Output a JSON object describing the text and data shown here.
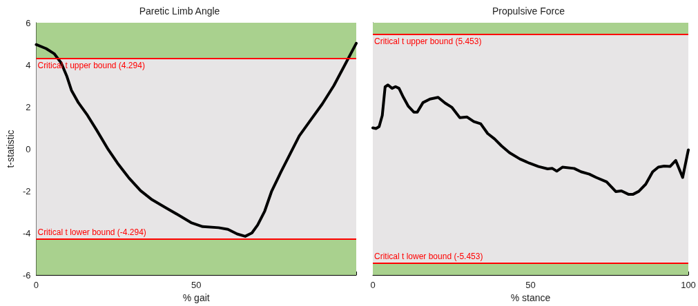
{
  "chart_data": [
    {
      "type": "line",
      "title": "Paretic Limb Angle",
      "xlabel": "% gait",
      "ylabel": "t-statistic",
      "xlim": [
        0,
        100
      ],
      "xticks": [
        0,
        50,
        {
          "value": 100,
          "label": null
        }
      ],
      "ylim": [
        -6,
        6
      ],
      "yticks": [
        -6,
        -4,
        -2,
        0,
        2,
        4,
        6
      ],
      "grid": false,
      "marker": "none",
      "line_style": "solid",
      "series": [
        {
          "color": "#000000",
          "x": [
            0,
            3.1,
            5.6,
            7.8,
            9.6,
            11,
            13.2,
            16,
            18.9,
            22.5,
            25.4,
            29,
            32.6,
            36.2,
            40.5,
            44.8,
            48.4,
            52,
            57,
            59.9,
            62.8,
            65.3,
            67.4,
            69.2,
            71.4,
            73.5,
            76.4,
            79.3,
            82.2,
            85.8,
            89.4,
            93,
            96.6,
            100
          ],
          "values": [
            4.96,
            4.77,
            4.53,
            4.09,
            3.44,
            2.79,
            2.19,
            1.6,
            0.89,
            -0.03,
            -0.68,
            -1.39,
            -1.99,
            -2.42,
            -2.8,
            -3.18,
            -3.51,
            -3.7,
            -3.75,
            -3.83,
            -4.05,
            -4.16,
            -4.0,
            -3.62,
            -2.96,
            -2.04,
            -1.12,
            -0.25,
            0.62,
            1.38,
            2.14,
            3.01,
            4.04,
            5.02
          ]
        }
      ],
      "ref_lines": [
        {
          "axis": "y",
          "value": 4.294,
          "label": "Critical t upper bound (4.294)",
          "color": "#ff0000"
        },
        {
          "axis": "y",
          "value": -4.294,
          "label": "Critical t lower bound (-4.294)",
          "color": "#ff0000"
        }
      ],
      "bands": [
        {
          "axis": "y",
          "from": 4.294,
          "to": 6,
          "color": "#a9d18e"
        },
        {
          "axis": "y",
          "from": -4.294,
          "to": 4.294,
          "color": "#e7e5e6"
        },
        {
          "axis": "y",
          "from": -6,
          "to": -4.294,
          "color": "#a9d18e"
        }
      ]
    },
    {
      "type": "line",
      "title": "Propulsive Force",
      "xlabel": "% stance",
      "xlim": [
        0,
        100
      ],
      "xticks": [
        0,
        50,
        100
      ],
      "ylim": [
        -6,
        6
      ],
      "tick_labels": "x",
      "grid": false,
      "marker": "none",
      "line_style": "solid",
      "series": [
        {
          "color": "#000000",
          "x": [
            0,
            1,
            2,
            3,
            3.9,
            4.8,
            6.1,
            7.2,
            8.3,
            9.7,
            11.2,
            13,
            14.1,
            15.9,
            18.1,
            20.7,
            22.9,
            25.1,
            27.6,
            29.8,
            32,
            34.2,
            36.4,
            38.6,
            40.8,
            43.3,
            46.6,
            49.6,
            52.5,
            55.4,
            56.9,
            58.3,
            60.1,
            63.8,
            66,
            68.6,
            70.8,
            74.1,
            75.5,
            77,
            78.8,
            81,
            82.5,
            84.3,
            86.5,
            88.7,
            90.5,
            92.3,
            94.2,
            96,
            98.2,
            100
          ],
          "values": [
            1.0,
            0.97,
            1.06,
            1.59,
            2.95,
            3.04,
            2.88,
            2.96,
            2.88,
            2.45,
            2.04,
            1.75,
            1.75,
            2.2,
            2.37,
            2.45,
            2.18,
            1.97,
            1.48,
            1.52,
            1.3,
            1.19,
            0.73,
            0.47,
            0.14,
            -0.18,
            -0.48,
            -0.68,
            -0.84,
            -0.95,
            -0.93,
            -1.06,
            -0.87,
            -0.93,
            -1.09,
            -1.2,
            -1.36,
            -1.57,
            -1.79,
            -2.03,
            -2.0,
            -2.16,
            -2.16,
            -2.02,
            -1.68,
            -1.09,
            -0.87,
            -0.82,
            -0.84,
            -0.55,
            -1.36,
            -0.05
          ]
        }
      ],
      "ref_lines": [
        {
          "axis": "y",
          "value": 5.453,
          "label": "Critical t upper bound (5.453)",
          "color": "#ff0000"
        },
        {
          "axis": "y",
          "value": -5.453,
          "label": "Critical t lower bound (-5.453)",
          "color": "#ff0000"
        }
      ],
      "bands": [
        {
          "axis": "y",
          "from": 5.453,
          "to": 6,
          "color": "#a9d18e"
        },
        {
          "axis": "y",
          "from": -5.453,
          "to": 5.453,
          "color": "#e7e5e6"
        },
        {
          "axis": "y",
          "from": -6,
          "to": -5.453,
          "color": "#a9d18e"
        }
      ]
    }
  ]
}
